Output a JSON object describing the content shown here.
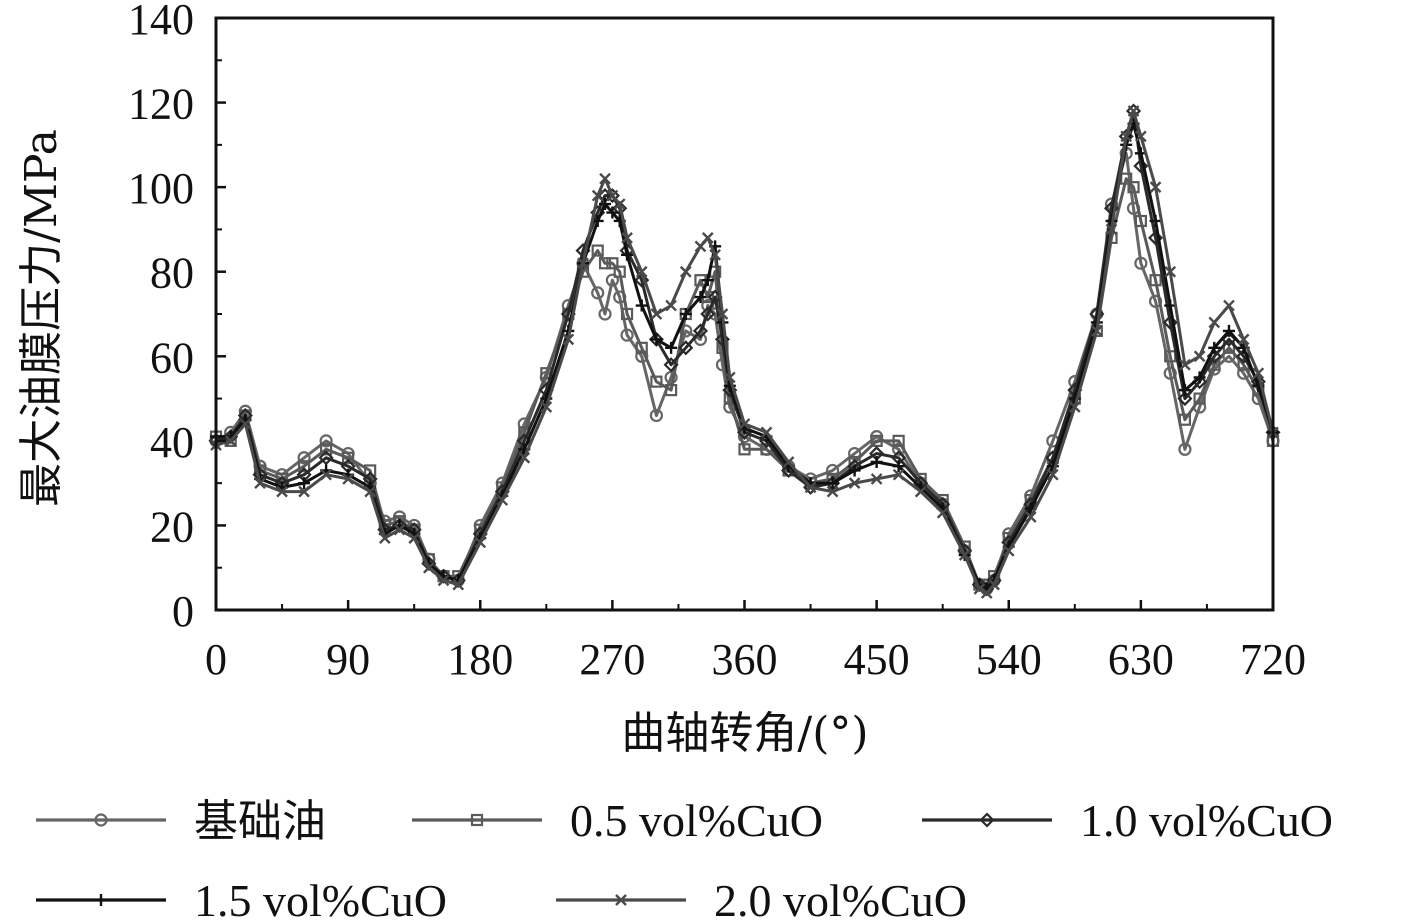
{
  "chart_data": {
    "type": "line",
    "xlabel": "曲轴转角/(°)",
    "ylabel": "最大油膜压力/MPa",
    "xlim": [
      0,
      720
    ],
    "ylim": [
      0,
      140
    ],
    "xticks": [
      0,
      90,
      180,
      270,
      360,
      450,
      540,
      630,
      720
    ],
    "yticks": [
      0,
      20,
      40,
      60,
      80,
      100,
      120,
      140
    ],
    "grid": false,
    "legend_position": "bottom",
    "x": [
      0,
      10,
      20,
      30,
      45,
      60,
      75,
      90,
      105,
      115,
      125,
      135,
      145,
      155,
      165,
      180,
      195,
      210,
      225,
      240,
      250,
      260,
      265,
      270,
      275,
      280,
      290,
      300,
      310,
      320,
      330,
      335,
      340,
      345,
      350,
      360,
      375,
      390,
      405,
      420,
      435,
      450,
      465,
      480,
      495,
      510,
      520,
      525,
      530,
      540,
      555,
      570,
      585,
      600,
      610,
      620,
      625,
      630,
      640,
      650,
      660,
      670,
      680,
      690,
      700,
      710,
      720
    ],
    "series": [
      {
        "name": "基础油",
        "marker": "circle",
        "color": "#666666",
        "values": [
          40,
          42,
          47,
          34,
          32,
          36,
          40,
          37,
          30,
          21,
          22,
          20,
          12,
          8,
          7,
          20,
          30,
          44,
          55,
          72,
          82,
          75,
          70,
          78,
          74,
          65,
          60,
          46,
          55,
          66,
          64,
          72,
          70,
          58,
          48,
          41,
          38,
          34,
          31,
          33,
          37,
          41,
          38,
          30,
          25,
          14,
          6,
          5,
          7,
          18,
          27,
          40,
          54,
          70,
          96,
          108,
          95,
          82,
          73,
          56,
          38,
          48,
          57,
          60,
          56,
          50,
          40
        ]
      },
      {
        "name": "0.5 vol%CuO",
        "marker": "square",
        "color": "#5a5a5a",
        "values": [
          41,
          40,
          46,
          33,
          31,
          34,
          38,
          36,
          33,
          20,
          21,
          19,
          12,
          8,
          8,
          19,
          29,
          42,
          56,
          70,
          80,
          85,
          82,
          82,
          80,
          70,
          62,
          54,
          52,
          70,
          78,
          74,
          80,
          62,
          50,
          38,
          38,
          33,
          30,
          31,
          35,
          40,
          40,
          31,
          26,
          15,
          6,
          6,
          8,
          17,
          26,
          36,
          50,
          66,
          88,
          102,
          100,
          92,
          78,
          60,
          45,
          50,
          58,
          62,
          58,
          52,
          40
        ]
      },
      {
        "name": "1.0 vol%CuO",
        "marker": "diamond",
        "color": "#2a2a2a",
        "values": [
          40,
          41,
          46,
          32,
          30,
          32,
          36,
          34,
          31,
          19,
          20,
          19,
          11,
          8,
          7,
          18,
          28,
          40,
          52,
          70,
          85,
          94,
          98,
          98,
          95,
          85,
          78,
          64,
          58,
          62,
          66,
          70,
          74,
          64,
          52,
          42,
          40,
          33,
          29,
          30,
          34,
          37,
          36,
          30,
          25,
          14,
          6,
          5,
          7,
          16,
          25,
          36,
          52,
          70,
          95,
          112,
          118,
          105,
          88,
          68,
          50,
          54,
          60,
          64,
          60,
          54,
          42
        ]
      },
      {
        "name": "1.5 vol%CuO",
        "marker": "plus",
        "color": "#111111",
        "values": [
          41,
          41,
          45,
          31,
          29,
          30,
          33,
          32,
          29,
          18,
          20,
          18,
          11,
          8,
          7,
          17,
          27,
          38,
          50,
          66,
          82,
          92,
          96,
          94,
          92,
          84,
          72,
          64,
          62,
          70,
          74,
          78,
          86,
          68,
          53,
          43,
          41,
          34,
          30,
          30,
          33,
          35,
          34,
          29,
          24,
          13,
          6,
          5,
          7,
          15,
          24,
          34,
          50,
          68,
          92,
          110,
          115,
          108,
          92,
          72,
          52,
          55,
          62,
          66,
          62,
          53,
          42
        ]
      },
      {
        "name": "2.0 vol%CuO",
        "marker": "cross",
        "color": "#4a4a4a",
        "values": [
          39,
          40,
          44,
          30,
          28,
          28,
          32,
          31,
          28,
          17,
          19,
          17,
          10,
          7,
          6,
          16,
          26,
          36,
          48,
          64,
          82,
          98,
          102,
          98,
          96,
          88,
          80,
          70,
          72,
          80,
          86,
          88,
          84,
          70,
          55,
          44,
          42,
          35,
          29,
          28,
          30,
          31,
          32,
          28,
          23,
          13,
          5,
          4,
          6,
          14,
          22,
          32,
          48,
          66,
          90,
          112,
          118,
          112,
          100,
          80,
          58,
          60,
          68,
          72,
          64,
          56,
          42
        ]
      }
    ]
  }
}
